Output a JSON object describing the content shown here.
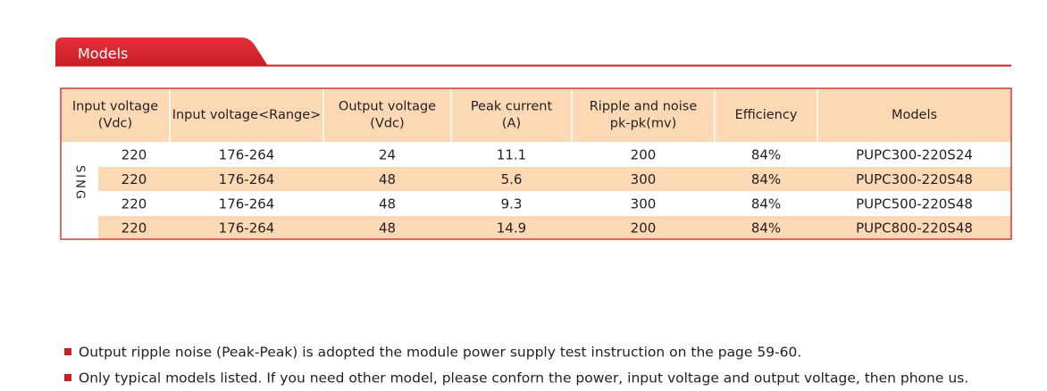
{
  "header": {
    "title": "Models"
  },
  "table": {
    "side_label": "SING",
    "columns": [
      [
        "Input voltage",
        "(Vdc)"
      ],
      [
        "Input voltage<Range>"
      ],
      [
        "Output voltage",
        "(Vdc)"
      ],
      [
        "Peak current",
        "(A)"
      ],
      [
        "Ripple and noise",
        "pk-pk(mv)"
      ],
      [
        "Efficiency"
      ],
      [
        "Models"
      ]
    ],
    "rows": [
      [
        "220",
        "176-264",
        "24",
        "11.1",
        "200",
        "84%",
        "PUPC300-220S24"
      ],
      [
        "220",
        "176-264",
        "48",
        "5.6",
        "300",
        "84%",
        "PUPC300-220S48"
      ],
      [
        "220",
        "176-264",
        "48",
        "9.3",
        "300",
        "84%",
        "PUPC500-220S48"
      ],
      [
        "220",
        "176-264",
        "48",
        "14.9",
        "200",
        "84%",
        "PUPC800-220S48"
      ]
    ]
  },
  "notes": [
    "Output ripple noise (Peak-Peak) is adopted the module power supply test instruction on the page 59-60.",
    "Only typical models listed. If you need other model, please conforn the power, input voltage and output voltage, then phone us."
  ]
}
